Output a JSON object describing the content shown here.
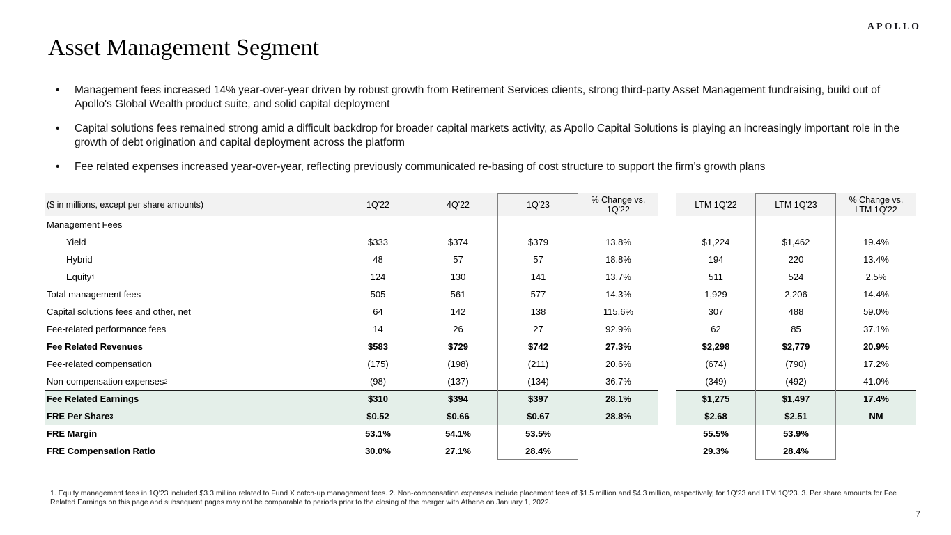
{
  "logo": "APOLLO",
  "title": "Asset Management Segment",
  "bullets": [
    "Management fees increased 14% year-over-year driven by robust growth from Retirement Services clients, strong third-party Asset Management fundraising, build out of Apollo's Global Wealth product suite, and solid capital deployment",
    "Capital solutions fees remained strong amid a difficult backdrop for broader capital markets activity, as Apollo Capital Solutions is playing an increasingly important role in the growth of debt origination and capital deployment across the platform",
    "Fee related expenses increased year-over-year, reflecting previously communicated re-basing of cost structure to support the firm’s growth plans"
  ],
  "table": {
    "note": "($ in millions, except per share amounts)",
    "columns": [
      "1Q'22",
      "4Q'22",
      "1Q'23",
      "% Change vs.\n1Q'22",
      "LTM 1Q'22",
      "LTM 1Q'23",
      "% Change vs.\nLTM 1Q'22"
    ],
    "rows": [
      {
        "label": "Management Fees",
        "section": true,
        "values": [
          "",
          "",
          "",
          "",
          "",
          "",
          ""
        ]
      },
      {
        "label": "Yield",
        "indent": true,
        "values": [
          "$333",
          "$374",
          "$379",
          "13.8%",
          "$1,224",
          "$1,462",
          "19.4%"
        ]
      },
      {
        "label": "Hybrid",
        "indent": true,
        "values": [
          "48",
          "57",
          "57",
          "18.8%",
          "194",
          "220",
          "13.4%"
        ]
      },
      {
        "label": "Equity",
        "sup": "1",
        "indent": true,
        "values": [
          "124",
          "130",
          "141",
          "13.7%",
          "511",
          "524",
          "2.5%"
        ]
      },
      {
        "label": "Total management fees",
        "values": [
          "505",
          "561",
          "577",
          "14.3%",
          "1,929",
          "2,206",
          "14.4%"
        ]
      },
      {
        "label": "Capital solutions fees and other, net",
        "values": [
          "64",
          "142",
          "138",
          "115.6%",
          "307",
          "488",
          "59.0%"
        ]
      },
      {
        "label": "Fee-related performance fees",
        "values": [
          "14",
          "26",
          "27",
          "92.9%",
          "62",
          "85",
          "37.1%"
        ]
      },
      {
        "label": "Fee Related Revenues",
        "bold": true,
        "values": [
          "$583",
          "$729",
          "$742",
          "27.3%",
          "$2,298",
          "$2,779",
          "20.9%"
        ]
      },
      {
        "label": "Fee-related compensation",
        "values": [
          "(175)",
          "(198)",
          "(211)",
          "20.6%",
          "(674)",
          "(790)",
          "17.2%"
        ]
      },
      {
        "label": "Non-compensation expenses",
        "sup": "2",
        "values": [
          "(98)",
          "(137)",
          "(134)",
          "36.7%",
          "(349)",
          "(492)",
          "41.0%"
        ]
      },
      {
        "label": "Fee Related Earnings",
        "bold": true,
        "green": true,
        "topline": true,
        "values": [
          "$310",
          "$394",
          "$397",
          "28.1%",
          "$1,275",
          "$1,497",
          "17.4%"
        ]
      },
      {
        "label": "FRE Per Share",
        "sup": "3",
        "bold": true,
        "green": true,
        "values": [
          "$0.52",
          "$0.66",
          "$0.67",
          "28.8%",
          "$2.68",
          "$2.51",
          "NM"
        ]
      },
      {
        "label": "FRE Margin",
        "bold": true,
        "values": [
          "53.1%",
          "54.1%",
          "53.5%",
          "",
          "55.5%",
          "53.9%",
          ""
        ]
      },
      {
        "label": "FRE Compensation Ratio",
        "bold": true,
        "values": [
          "30.0%",
          "27.1%",
          "28.4%",
          "",
          "29.3%",
          "28.4%",
          ""
        ]
      }
    ]
  },
  "footnote": "1. Equity management fees in 1Q'23 included $3.3 million related to Fund X catch-up management fees. 2. Non-compensation expenses include placement fees of $1.5 million and $4.3 million, respectively, for 1Q'23 and LTM 1Q'23. 3. Per share amounts for Fee Related Earnings on this page and subsequent pages may not be comparable to periods prior to the closing of the merger with Athene on January 1, 2022.",
  "page_number": "7",
  "colors": {
    "header_bg": "#f2f2f2",
    "highlight_bg": "#e4efe9",
    "box_border": "#7f7f7f",
    "divider": "#1a1a1a"
  }
}
